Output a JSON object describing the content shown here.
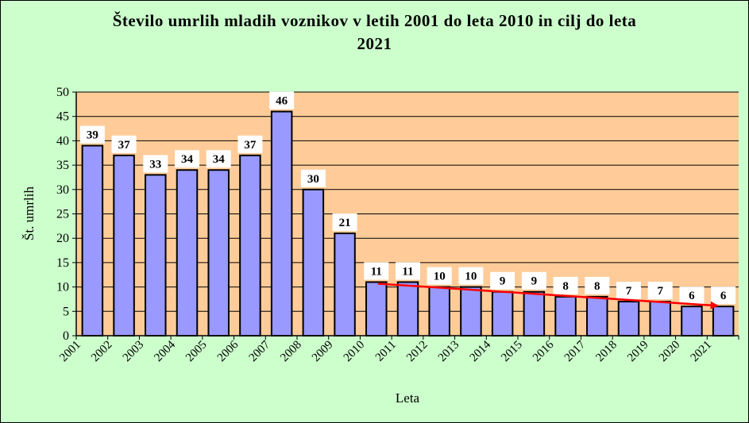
{
  "chart_data": {
    "type": "bar",
    "title_line1": "Število umrlih mladih voznikov v letih 2001 do leta 2010 in cilj do leta",
    "title_line2": "2021",
    "xlabel": "Leta",
    "ylabel": "Št. umrlih",
    "ylim": [
      0,
      50
    ],
    "yticks": [
      "0",
      "5",
      "10",
      "15",
      "20",
      "25",
      "30",
      "35",
      "40",
      "45",
      "50"
    ],
    "categories": [
      "2001",
      "2002",
      "2003",
      "2004",
      "2005",
      "2006",
      "2007",
      "2008",
      "2009",
      "2010",
      "2011",
      "2012",
      "2013",
      "2014",
      "2015",
      "2016",
      "2017",
      "2018",
      "2019",
      "2020",
      "2021"
    ],
    "values": [
      39,
      37,
      33,
      34,
      34,
      37,
      46,
      30,
      21,
      11,
      11,
      10,
      10,
      9,
      9,
      8,
      8,
      7,
      7,
      6,
      6
    ],
    "trend": {
      "from": {
        "x": "2010",
        "y": 11
      },
      "to": {
        "x": "2021",
        "y": 6
      }
    },
    "colors": {
      "background": "#ccffcc",
      "plot_area": "#ffcc99",
      "bar_fill": "#9999ff",
      "bar_stroke": "#000000",
      "trend_line": "#ff0000",
      "label_box": "#ffffff"
    },
    "grid": true,
    "legend": "none"
  }
}
